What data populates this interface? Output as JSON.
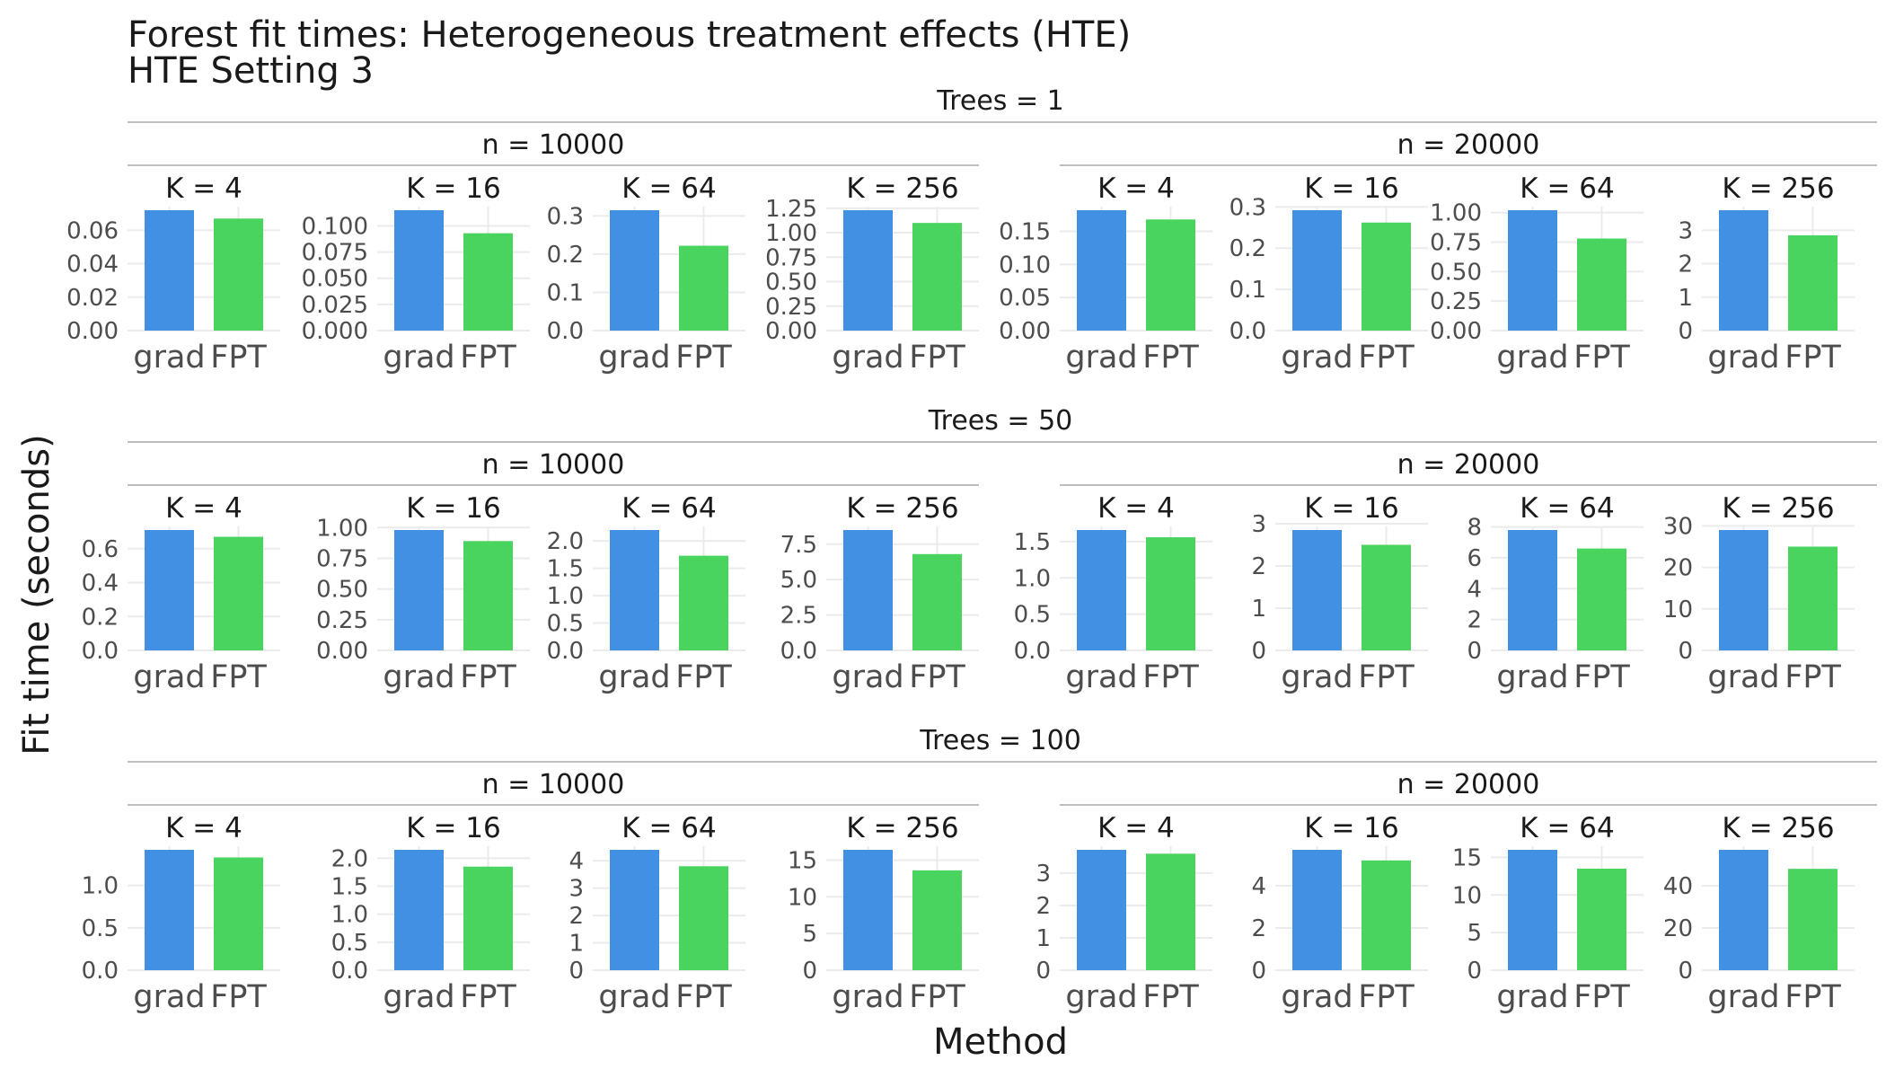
{
  "chart_data": {
    "type": "bar",
    "title": "Forest fit times: Heterogeneous treatment effects (HTE)",
    "subtitle": "HTE Setting 3",
    "xlabel": "Method",
    "ylabel": "Fit time (seconds)",
    "categories": [
      "grad",
      "FPT"
    ],
    "colors": {
      "grad": "#4190e4",
      "FPT": "#49d35f"
    },
    "grid": true,
    "facet_rows": [
      {
        "label": "Trees = 1",
        "groups": [
          {
            "label": "n = 10000",
            "panels": [
              {
                "label": "K = 4",
                "values": [
                  0.072,
                  0.067
                ],
                "ylim": [
                  0,
                  0.072
                ],
                "yticks": [
                  0,
                  0.02,
                  0.04,
                  0.06
                ],
                "ytick_labels": [
                  "0.00",
                  "0.02",
                  "0.04",
                  "0.06"
                ]
              },
              {
                "label": "K = 16",
                "values": [
                  0.115,
                  0.093
                ],
                "ylim": [
                  0,
                  0.115
                ],
                "yticks": [
                  0,
                  0.025,
                  0.05,
                  0.075,
                  0.1
                ],
                "ytick_labels": [
                  "0.000",
                  "0.025",
                  "0.050",
                  "0.075",
                  "0.100"
                ]
              },
              {
                "label": "K = 64",
                "values": [
                  0.315,
                  0.222
                ],
                "ylim": [
                  0,
                  0.315
                ],
                "yticks": [
                  0,
                  0.1,
                  0.2,
                  0.3
                ],
                "ytick_labels": [
                  "0.0",
                  "0.1",
                  "0.2",
                  "0.3"
                ]
              },
              {
                "label": "K = 256",
                "values": [
                  1.23,
                  1.1
                ],
                "ylim": [
                  0,
                  1.23
                ],
                "yticks": [
                  0,
                  0.25,
                  0.5,
                  0.75,
                  1.0,
                  1.25
                ],
                "ytick_labels": [
                  "0.00",
                  "0.25",
                  "0.50",
                  "0.75",
                  "1.00",
                  "1.25"
                ]
              }
            ]
          },
          {
            "label": "n = 20000",
            "panels": [
              {
                "label": "K = 4",
                "values": [
                  0.182,
                  0.168
                ],
                "ylim": [
                  0,
                  0.182
                ],
                "yticks": [
                  0,
                  0.05,
                  0.1,
                  0.15
                ],
                "ytick_labels": [
                  "0.00",
                  "0.05",
                  "0.10",
                  "0.15"
                ]
              },
              {
                "label": "K = 16",
                "values": [
                  0.292,
                  0.262
                ],
                "ylim": [
                  0,
                  0.292
                ],
                "yticks": [
                  0,
                  0.1,
                  0.2,
                  0.3
                ],
                "ytick_labels": [
                  "0.0",
                  "0.1",
                  "0.2",
                  "0.3"
                ]
              },
              {
                "label": "K = 64",
                "values": [
                  1.02,
                  0.78
                ],
                "ylim": [
                  0,
                  1.02
                ],
                "yticks": [
                  0,
                  0.25,
                  0.5,
                  0.75,
                  1.0
                ],
                "ytick_labels": [
                  "0.00",
                  "0.25",
                  "0.50",
                  "0.75",
                  "1.00"
                ]
              },
              {
                "label": "K = 256",
                "values": [
                  3.6,
                  2.85
                ],
                "ylim": [
                  0,
                  3.6
                ],
                "yticks": [
                  0,
                  1,
                  2,
                  3
                ],
                "ytick_labels": [
                  "0",
                  "1",
                  "2",
                  "3"
                ]
              }
            ]
          }
        ]
      },
      {
        "label": "Trees = 50",
        "groups": [
          {
            "label": "n = 10000",
            "panels": [
              {
                "label": "K = 4",
                "values": [
                  0.71,
                  0.67
                ],
                "ylim": [
                  0,
                  0.71
                ],
                "yticks": [
                  0,
                  0.2,
                  0.4,
                  0.6
                ],
                "ytick_labels": [
                  "0.0",
                  "0.2",
                  "0.4",
                  "0.6"
                ]
              },
              {
                "label": "K = 16",
                "values": [
                  0.98,
                  0.89
                ],
                "ylim": [
                  0,
                  0.98
                ],
                "yticks": [
                  0,
                  0.25,
                  0.5,
                  0.75,
                  1.0
                ],
                "ytick_labels": [
                  "0.00",
                  "0.25",
                  "0.50",
                  "0.75",
                  "1.00"
                ]
              },
              {
                "label": "K = 64",
                "values": [
                  2.2,
                  1.73
                ],
                "ylim": [
                  0,
                  2.2
                ],
                "yticks": [
                  0,
                  0.5,
                  1.0,
                  1.5,
                  2.0
                ],
                "ytick_labels": [
                  "0.0",
                  "0.5",
                  "1.0",
                  "1.5",
                  "2.0"
                ]
              },
              {
                "label": "K = 256",
                "values": [
                  8.5,
                  6.8
                ],
                "ylim": [
                  0,
                  8.5
                ],
                "yticks": [
                  0,
                  2.5,
                  5,
                  7.5
                ],
                "ytick_labels": [
                  "0.0",
                  "2.5",
                  "5.0",
                  "7.5"
                ]
              }
            ]
          },
          {
            "label": "n = 20000",
            "panels": [
              {
                "label": "K = 4",
                "values": [
                  1.66,
                  1.56
                ],
                "ylim": [
                  0,
                  1.66
                ],
                "yticks": [
                  0,
                  0.5,
                  1.0,
                  1.5
                ],
                "ytick_labels": [
                  "0.0",
                  "0.5",
                  "1.0",
                  "1.5"
                ]
              },
              {
                "label": "K = 16",
                "values": [
                  2.85,
                  2.5
                ],
                "ylim": [
                  0,
                  2.85
                ],
                "yticks": [
                  0,
                  1,
                  2,
                  3
                ],
                "ytick_labels": [
                  "0",
                  "1",
                  "2",
                  "3"
                ]
              },
              {
                "label": "K = 64",
                "values": [
                  7.8,
                  6.6
                ],
                "ylim": [
                  0,
                  7.8
                ],
                "yticks": [
                  0,
                  2,
                  4,
                  6,
                  8
                ],
                "ytick_labels": [
                  "0",
                  "2",
                  "4",
                  "6",
                  "8"
                ]
              },
              {
                "label": "K = 256",
                "values": [
                  29.0,
                  25.0
                ],
                "ylim": [
                  0,
                  29.0
                ],
                "yticks": [
                  0,
                  10,
                  20,
                  30
                ],
                "ytick_labels": [
                  "0",
                  "10",
                  "20",
                  "30"
                ]
              }
            ]
          }
        ]
      },
      {
        "label": "Trees = 100",
        "groups": [
          {
            "label": "n = 10000",
            "panels": [
              {
                "label": "K = 4",
                "values": [
                  1.42,
                  1.33
                ],
                "ylim": [
                  0,
                  1.42
                ],
                "yticks": [
                  0,
                  0.5,
                  1.0
                ],
                "ytick_labels": [
                  "0.0",
                  "0.5",
                  "1.0"
                ]
              },
              {
                "label": "K = 16",
                "values": [
                  2.15,
                  1.85
                ],
                "ylim": [
                  0,
                  2.15
                ],
                "yticks": [
                  0,
                  0.5,
                  1.0,
                  1.5,
                  2.0
                ],
                "ytick_labels": [
                  "0.0",
                  "0.5",
                  "1.0",
                  "1.5",
                  "2.0"
                ]
              },
              {
                "label": "K = 64",
                "values": [
                  4.4,
                  3.8
                ],
                "ylim": [
                  0,
                  4.4
                ],
                "yticks": [
                  0,
                  1,
                  2,
                  3,
                  4
                ],
                "ytick_labels": [
                  "0",
                  "1",
                  "2",
                  "3",
                  "4"
                ]
              },
              {
                "label": "K = 256",
                "values": [
                  16.4,
                  13.6
                ],
                "ylim": [
                  0,
                  16.4
                ],
                "yticks": [
                  0,
                  5,
                  10,
                  15
                ],
                "ytick_labels": [
                  "0",
                  "5",
                  "10",
                  "15"
                ]
              }
            ]
          },
          {
            "label": "n = 20000",
            "panels": [
              {
                "label": "K = 4",
                "values": [
                  3.72,
                  3.6
                ],
                "ylim": [
                  0,
                  3.72
                ],
                "yticks": [
                  0,
                  1,
                  2,
                  3
                ],
                "ytick_labels": [
                  "0",
                  "1",
                  "2",
                  "3"
                ]
              },
              {
                "label": "K = 16",
                "values": [
                  5.7,
                  5.2
                ],
                "ylim": [
                  0,
                  5.7
                ],
                "yticks": [
                  0,
                  2,
                  4
                ],
                "ytick_labels": [
                  "0",
                  "2",
                  "4"
                ]
              },
              {
                "label": "K = 64",
                "values": [
                  16.0,
                  13.5
                ],
                "ylim": [
                  0,
                  16.0
                ],
                "yticks": [
                  0,
                  5,
                  10,
                  15
                ],
                "ytick_labels": [
                  "0",
                  "5",
                  "10",
                  "15"
                ]
              },
              {
                "label": "K = 256",
                "values": [
                  57.0,
                  48.0
                ],
                "ylim": [
                  0,
                  57.0
                ],
                "yticks": [
                  0,
                  20,
                  40
                ],
                "ytick_labels": [
                  "0",
                  "20",
                  "40"
                ]
              }
            ]
          }
        ]
      }
    ]
  }
}
